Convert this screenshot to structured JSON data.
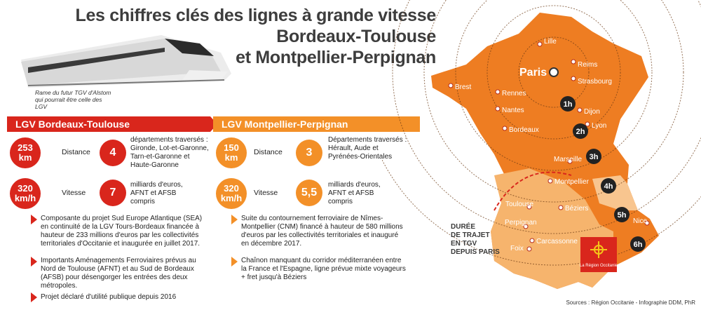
{
  "title": {
    "line1": "Les chiffres clés des lignes à grande vitesse",
    "line2": "Bordeaux-Toulouse",
    "line3": "et Montpellier-Perpignan"
  },
  "caption": "Rame du futur TGV d'Alstom qui pourrait être celle des LGV",
  "left": {
    "header": "LGV Bordeaux-Toulouse",
    "distance_value": "253 km",
    "distance_label": "Distance",
    "departments_count": "4",
    "departments_text": "départements traversés : Gironde, Lot-et-Garonne, Tarn-et-Garonne et Haute-Garonne",
    "speed_value": "320 km/h",
    "speed_label": "Vitesse",
    "cost_value": "7",
    "cost_text": "milliards d'euros, AFNT et AFSB compris",
    "bullets": [
      "Composante du projet Sud Europe Atlantique (SEA) en continuité de la LGV Tours-Bordeaux financée à hauteur de 233 millions d'euros par les collectivités territoriales d'Occitanie et inaugurée en juillet 2017.",
      "Importants Aménagements Ferroviaires prévus au Nord de Toulouse (AFNT) et au Sud de Bordeaux (AFSB) pour désengorger les entrées des deux métropoles.",
      "Projet déclaré d'utilité publique depuis 2016"
    ]
  },
  "right": {
    "header": "LGV Montpellier-Perpignan",
    "distance_value": "150 km",
    "distance_label": "Distance",
    "departments_count": "3",
    "departments_text": "Départements traversés : Hérault, Aude et Pyrénées-Orientales",
    "speed_value": "320 km/h",
    "speed_label": "Vitesse",
    "cost_value": "5,5",
    "cost_text": "milliards d'euros, AFNT et AFSB compris",
    "bullets": [
      "Suite du contournement ferroviaire de Nîmes-Montpellier (CNM) financé à hauteur de 580 millions d'euros par les collectivités territoriales et inauguré en décembre 2017.",
      "Chaînon manquant du corridor méditerranéen entre la France et l'Espagne, ligne prévue mixte voyageurs + fret jusqu'à Béziers"
    ]
  },
  "map": {
    "cities": [
      "Lille",
      "Reims",
      "Paris",
      "Strasbourg",
      "Brest",
      "Rennes",
      "Nantes",
      "Dijon",
      "Lyon",
      "Bordeaux",
      "Marseille",
      "Montpellier",
      "Toulouse",
      "Béziers",
      "Perpignan",
      "Carcassonne",
      "Foix",
      "Nice"
    ],
    "rings": [
      "1h",
      "2h",
      "3h",
      "4h",
      "5h",
      "6h"
    ],
    "legend": [
      "DURÉE",
      "DE TRAJET",
      "EN TGV",
      "DEPUIS PARIS"
    ],
    "logo_text": "La Région Occitanie"
  },
  "source": "Sources : Région Occitanie - Infographie DDM, PhR",
  "colors": {
    "red": "#d9261c",
    "orange": "#f39028",
    "map_dark": "#ee7d22",
    "map_light": "#f6b46d"
  }
}
